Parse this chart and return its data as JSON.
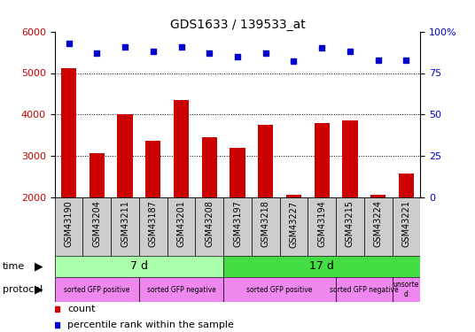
{
  "title": "GDS1633 / 139533_at",
  "samples": [
    "GSM43190",
    "GSM43204",
    "GSM43211",
    "GSM43187",
    "GSM43201",
    "GSM43208",
    "GSM43197",
    "GSM43218",
    "GSM43227",
    "GSM43194",
    "GSM43215",
    "GSM43224",
    "GSM43221"
  ],
  "counts": [
    5120,
    3060,
    4010,
    3360,
    4360,
    3450,
    3200,
    3760,
    2060,
    3800,
    3850,
    2060,
    2580
  ],
  "percentile": [
    93,
    87,
    91,
    88,
    91,
    87,
    85,
    87,
    82,
    90,
    88,
    83,
    83
  ],
  "ylim_left": [
    2000,
    6000
  ],
  "ylim_right": [
    0,
    100
  ],
  "yticks_left": [
    2000,
    3000,
    4000,
    5000,
    6000
  ],
  "yticks_right": [
    0,
    25,
    50,
    75,
    100
  ],
  "bar_color": "#cc0000",
  "dot_color": "#0000cc",
  "time_labels": [
    "7 d",
    "17 d"
  ],
  "time_color_7": "#aaffaa",
  "time_color_17": "#44dd44",
  "protocol_color_light": "#ee88ee",
  "protocol_color_dark": "#dd66dd",
  "tick_label_color_left": "#cc0000",
  "tick_label_color_right": "#0000cc",
  "xticklabel_bg": "#cccccc",
  "plot_bg": "#ffffff"
}
